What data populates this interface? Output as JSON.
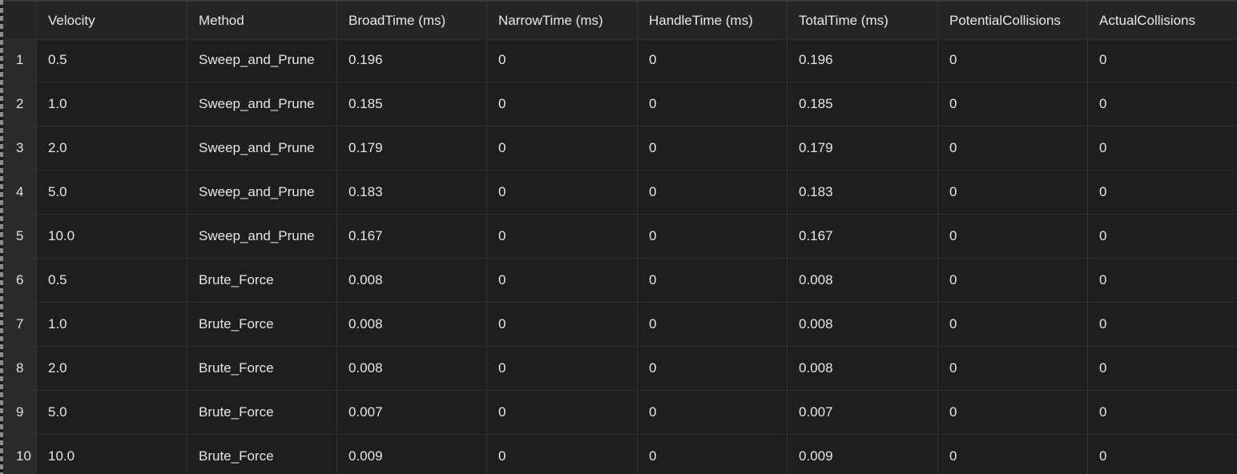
{
  "columns": [
    "Velocity",
    "Method",
    "BroadTime (ms)",
    "NarrowTime (ms)",
    "HandleTime (ms)",
    "TotalTime (ms)",
    "PotentialCollisions",
    "ActualCollisions"
  ],
  "rows": [
    {
      "index": "1",
      "cells": [
        "0.5",
        "Sweep_and_Prune",
        "0.196",
        "0",
        "0",
        "0.196",
        "0",
        "0"
      ]
    },
    {
      "index": "2",
      "cells": [
        "1.0",
        "Sweep_and_Prune",
        "0.185",
        "0",
        "0",
        "0.185",
        "0",
        "0"
      ]
    },
    {
      "index": "3",
      "cells": [
        "2.0",
        "Sweep_and_Prune",
        "0.179",
        "0",
        "0",
        "0.179",
        "0",
        "0"
      ]
    },
    {
      "index": "4",
      "cells": [
        "5.0",
        "Sweep_and_Prune",
        "0.183",
        "0",
        "0",
        "0.183",
        "0",
        "0"
      ]
    },
    {
      "index": "5",
      "cells": [
        "10.0",
        "Sweep_and_Prune",
        "0.167",
        "0",
        "0",
        "0.167",
        "0",
        "0"
      ]
    },
    {
      "index": "6",
      "cells": [
        "0.5",
        "Brute_Force",
        "0.008",
        "0",
        "0",
        "0.008",
        "0",
        "0"
      ]
    },
    {
      "index": "7",
      "cells": [
        "1.0",
        "Brute_Force",
        "0.008",
        "0",
        "0",
        "0.008",
        "0",
        "0"
      ]
    },
    {
      "index": "8",
      "cells": [
        "2.0",
        "Brute_Force",
        "0.008",
        "0",
        "0",
        "0.008",
        "0",
        "0"
      ]
    },
    {
      "index": "9",
      "cells": [
        "5.0",
        "Brute_Force",
        "0.007",
        "0",
        "0",
        "0.007",
        "0",
        "0"
      ]
    },
    {
      "index": "10",
      "cells": [
        "10.0",
        "Brute_Force",
        "0.009",
        "0",
        "0",
        "0.009",
        "0",
        "0"
      ]
    }
  ],
  "colors": {
    "background": "#1e1e1e",
    "header_background": "#252526",
    "index_background": "#2a2a2a",
    "text": "#e6e6e6",
    "grid_line": "#333333"
  }
}
